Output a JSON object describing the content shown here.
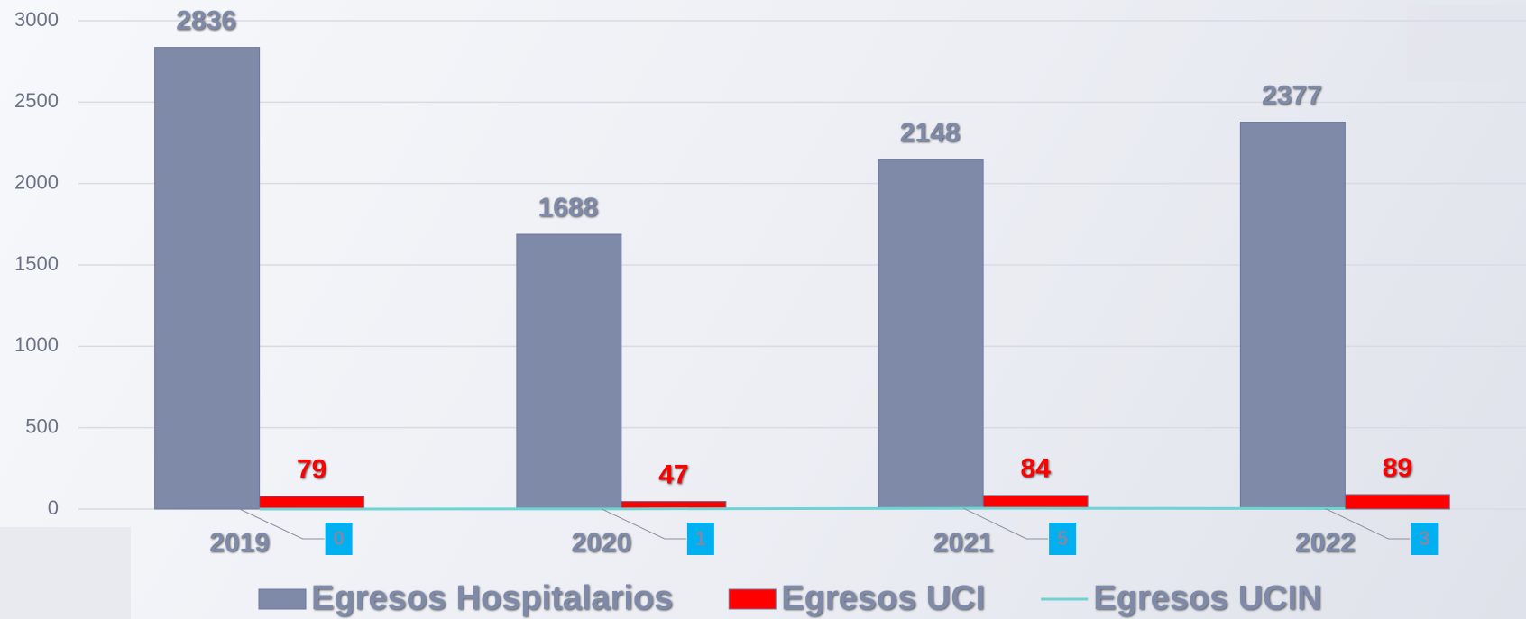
{
  "chart_data": {
    "type": "bar",
    "categories": [
      "2019",
      "2020",
      "2021",
      "2022"
    ],
    "series": [
      {
        "name": "Egresos Hospitalarios",
        "color": "#7f8aa9",
        "values": [
          2836,
          1688,
          2148,
          2377
        ]
      },
      {
        "name": "Egresos UCI",
        "color": "#ff0000",
        "values": [
          79,
          47,
          84,
          89
        ]
      },
      {
        "name": "Egresos UCIN",
        "color": "#6fd3d3",
        "type": "line",
        "values": [
          0,
          1,
          5,
          3
        ]
      }
    ],
    "ylim": [
      0,
      3000
    ],
    "yticks": [
      0,
      500,
      1000,
      1500,
      2000,
      2500,
      3000
    ],
    "grid": true,
    "legend": "bottom"
  }
}
